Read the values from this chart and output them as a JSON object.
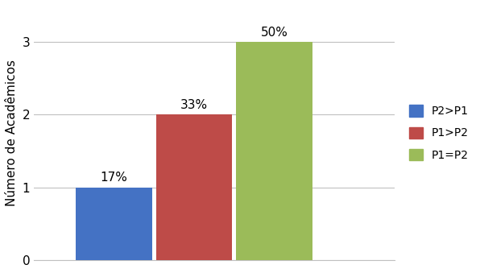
{
  "categories": [
    "P2>P1",
    "P1>P2",
    "P1=P2"
  ],
  "values": [
    1,
    2,
    3
  ],
  "percentages": [
    "17%",
    "33%",
    "50%"
  ],
  "bar_colors": [
    "#4472C4",
    "#BE4B48",
    "#9BBB59"
  ],
  "ylabel": "Número de Acadêmicos",
  "ylim": [
    0,
    3.5
  ],
  "yticks": [
    0,
    1,
    2,
    3
  ],
  "legend_labels": [
    "P2>P1",
    "P1>P2",
    "P1=P2"
  ],
  "bar_width": 0.95,
  "label_fontsize": 11,
  "ylabel_fontsize": 11,
  "tick_fontsize": 11,
  "legend_fontsize": 10,
  "background_color": "#FFFFFF",
  "grid_color": "#C0C0C0",
  "x_positions": [
    1,
    2,
    3
  ],
  "xlim": [
    0,
    4.5
  ]
}
